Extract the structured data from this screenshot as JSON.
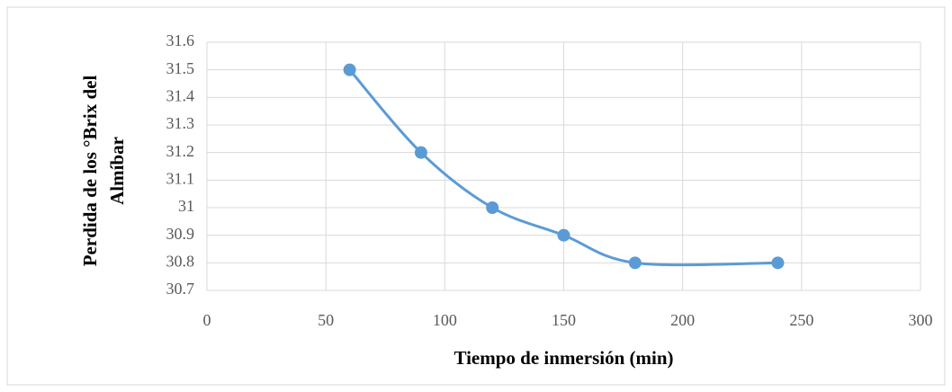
{
  "chart_data": {
    "type": "line",
    "smooth": true,
    "markers": true,
    "xlabel": "Tiempo de inmersión (min)",
    "ylabel": [
      "Perdida de los °Brix del",
      "Almíbar"
    ],
    "x": [
      60,
      90,
      120,
      150,
      180,
      240
    ],
    "values": [
      31.5,
      31.2,
      31,
      30.9,
      30.8,
      30.8
    ],
    "color": "#5b9bd5",
    "xlim": [
      0,
      300
    ],
    "xticks": [
      0,
      50,
      100,
      150,
      200,
      250,
      300
    ],
    "ylim": [
      30.7,
      31.6
    ],
    "yticks": [
      30.7,
      30.8,
      30.9,
      31,
      31.1,
      31.2,
      31.3,
      31.4,
      31.5,
      31.6
    ],
    "grid": true
  }
}
